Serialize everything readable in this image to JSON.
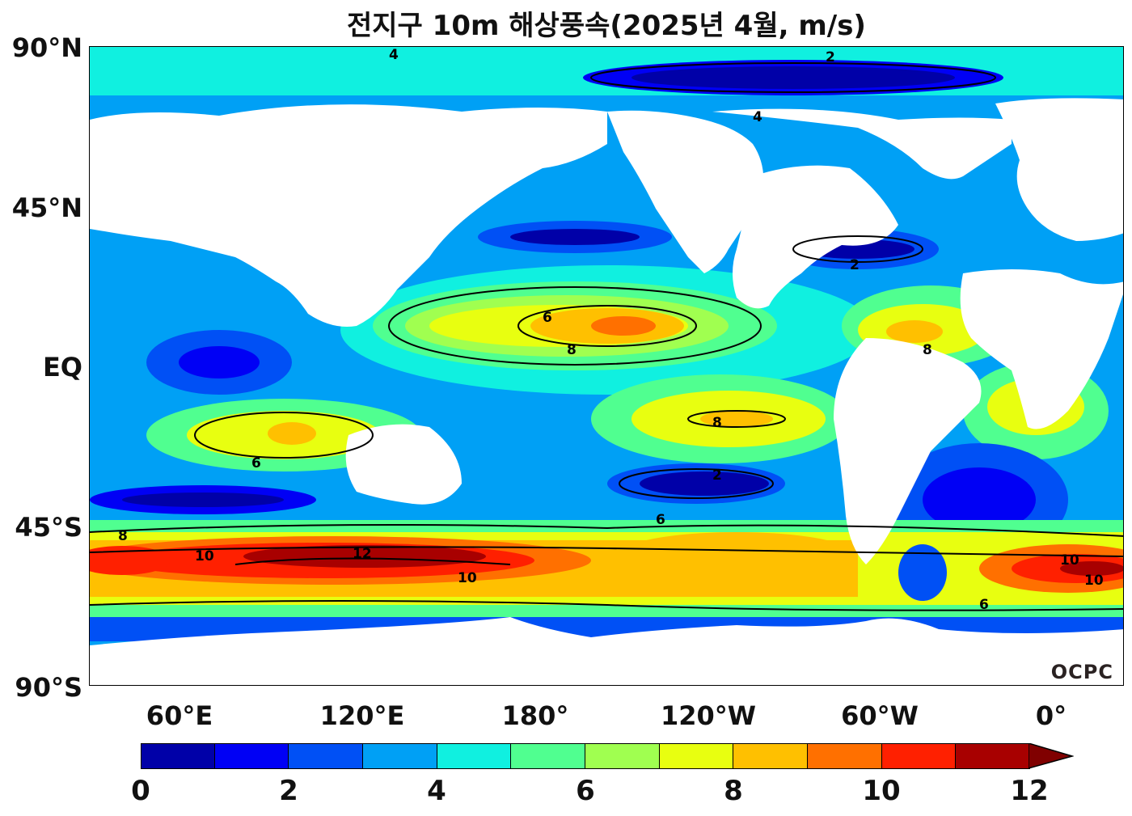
{
  "title": "전지구 10m 해상풍속(2025년 4월, m/s)",
  "logo": "OCPC",
  "lat_labels": [
    "90°N",
    "45°N",
    "EQ",
    "45°S",
    "90°S"
  ],
  "lon_labels": [
    "60°E",
    "120°E",
    "180°",
    "120°W",
    "60°W",
    "0°"
  ],
  "colorbar": {
    "ticks": [
      "0",
      "2",
      "4",
      "6",
      "8",
      "10",
      "12"
    ],
    "colors": [
      "#0000a8",
      "#0000f5",
      "#0050f5",
      "#00a0f5",
      "#10f0e0",
      "#50ff90",
      "#a0ff50",
      "#e8ff10",
      "#ffc000",
      "#ff7000",
      "#ff2000",
      "#a80000"
    ],
    "extend_color": "#800000"
  },
  "contour_labels": [
    "2",
    "4",
    "6",
    "8",
    "10",
    "12"
  ]
}
